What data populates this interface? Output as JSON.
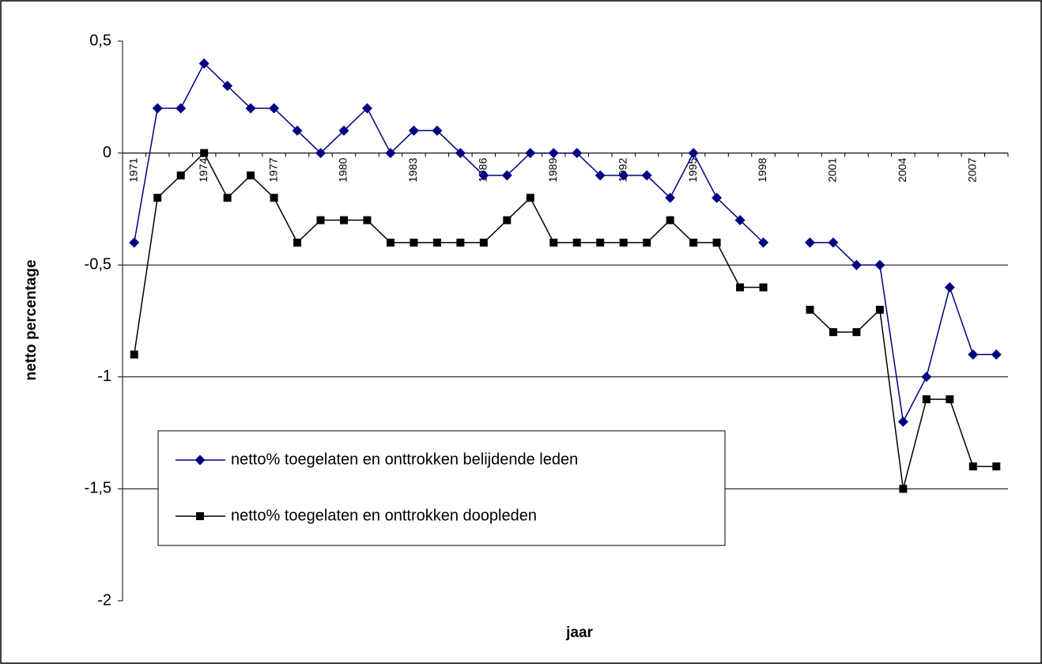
{
  "chart_data": {
    "type": "line",
    "x_label": "jaar",
    "y_label": "netto percentage",
    "categories": [
      "1971",
      null,
      null,
      "1974",
      null,
      null,
      "1977",
      null,
      null,
      "1980",
      null,
      null,
      "1983",
      null,
      null,
      "1986",
      null,
      null,
      "1989",
      null,
      null,
      "1992",
      null,
      null,
      "1995",
      null,
      null,
      "1998",
      null,
      null,
      "2001",
      null,
      null,
      "2004",
      null,
      null,
      "2007",
      null
    ],
    "series": [
      {
        "name": "netto% toegelaten en onttrokken belijdende leden",
        "color": "#000080",
        "marker": "diamond",
        "values": [
          -0.4,
          0.2,
          0.2,
          0.4,
          0.3,
          0.2,
          0.2,
          0.1,
          0,
          0.1,
          0.2,
          0,
          0.1,
          0.1,
          0,
          -0.1,
          -0.1,
          0,
          0,
          0,
          -0.1,
          -0.1,
          -0.1,
          -0.2,
          0,
          -0.2,
          -0.3,
          -0.4,
          null,
          -0.4,
          -0.4,
          -0.5,
          -0.5,
          -1.2,
          -1.0,
          -0.6,
          -0.9,
          -0.9
        ]
      },
      {
        "name": "netto% toegelaten en onttrokken doopleden",
        "color": "#000000",
        "marker": "square",
        "values": [
          -0.9,
          -0.2,
          -0.1,
          0,
          -0.2,
          -0.1,
          -0.2,
          -0.4,
          -0.3,
          -0.3,
          -0.3,
          -0.4,
          -0.4,
          -0.4,
          -0.4,
          -0.4,
          -0.3,
          -0.2,
          -0.4,
          -0.4,
          -0.4,
          -0.4,
          -0.4,
          -0.3,
          -0.4,
          -0.4,
          -0.6,
          -0.6,
          null,
          -0.7,
          -0.8,
          -0.8,
          -0.7,
          -1.5,
          -1.1,
          -1.1,
          -1.4,
          -1.4
        ]
      }
    ],
    "ylim": [
      -2,
      0.5
    ],
    "yticks": [
      {
        "value": 0.5,
        "label": "0,5"
      },
      0,
      {
        "value": -0.5,
        "label": "-0,5"
      },
      -1,
      {
        "value": -1.5,
        "label": "-1,5"
      },
      -2
    ],
    "grid": true,
    "legend": "lower left"
  }
}
